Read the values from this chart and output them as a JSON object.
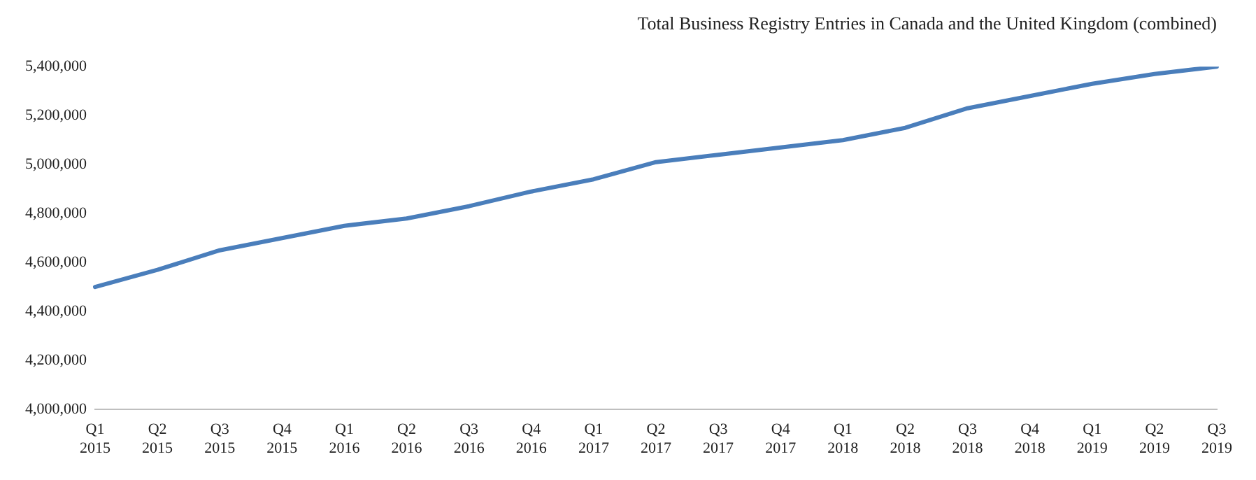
{
  "chart_data": {
    "type": "line",
    "title": "Total Business Registry Entries in Canada and the United Kingdom (combined)",
    "categories": [
      "Q1 2015",
      "Q2 2015",
      "Q3 2015",
      "Q4 2015",
      "Q1 2016",
      "Q2 2016",
      "Q3 2016",
      "Q4 2016",
      "Q1 2017",
      "Q2 2017",
      "Q3 2017",
      "Q4 2017",
      "Q1 2018",
      "Q2 2018",
      "Q3 2018",
      "Q4 2018",
      "Q1 2019",
      "Q2 2019",
      "Q3 2019"
    ],
    "series": [
      {
        "color": "#4a7ebb",
        "values": [
          4500000,
          4570000,
          4650000,
          4700000,
          4750000,
          4780000,
          4830000,
          4890000,
          4940000,
          5010000,
          5040000,
          5070000,
          5100000,
          5150000,
          5230000,
          5280000,
          5330000,
          5370000,
          5400000
        ]
      }
    ],
    "ylim": [
      4000000,
      5400000
    ],
    "yticks": [
      {
        "value": 4000000,
        "label": "4,000,000"
      },
      {
        "value": 4200000,
        "label": "4,200,000"
      },
      {
        "value": 4400000,
        "label": "4,400,000"
      },
      {
        "value": 4600000,
        "label": "4,600,000"
      },
      {
        "value": 4800000,
        "label": "4,800,000"
      },
      {
        "value": 5000000,
        "label": "5,000,000"
      },
      {
        "value": 5200000,
        "label": "5,200,000"
      },
      {
        "value": 5400000,
        "label": "5,400,000"
      }
    ],
    "grid": false,
    "legend": false,
    "marker": "none",
    "line_style": "solid"
  }
}
